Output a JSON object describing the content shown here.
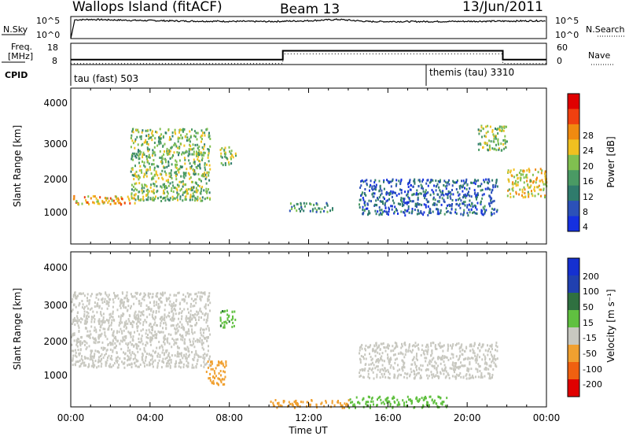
{
  "header": {
    "station": "Wallops Island (fitACF)",
    "beam": "Beam 13",
    "date": "13/Jun/2011"
  },
  "nsky_panel": {
    "left_label": "N.Sky",
    "right_label": "N.Search",
    "left_ticks": [
      "10^5",
      "10^0"
    ],
    "right_ticks": [
      "10^5",
      "10^0"
    ]
  },
  "freq_panel": {
    "left_label_line1": "Freq.",
    "left_label_line2": "[MHz]",
    "right_label": "Nave",
    "left_ticks": [
      "18",
      "8"
    ],
    "right_ticks": [
      "60",
      "0"
    ]
  },
  "cpid_panel": {
    "label": "CPID",
    "programs": [
      "tau (fast) 503",
      "themis (tau) 3310"
    ]
  },
  "power_panel": {
    "ylabel": "Slant Range [km]",
    "y_ticks": [
      "4000",
      "3000",
      "2000",
      "1000"
    ],
    "colorbar_label": "Power [dB]",
    "colorbar_ticks": [
      "28",
      "24",
      "20",
      "16",
      "12",
      "8",
      "4"
    ]
  },
  "velocity_panel": {
    "ylabel": "Slant Range [km]",
    "y_ticks": [
      "4000",
      "3000",
      "2000",
      "1000"
    ],
    "colorbar_label": "Velocity [m s⁻¹]",
    "colorbar_ticks": [
      "200",
      "100",
      "50",
      "15",
      "-15",
      "-50",
      "-100",
      "-200"
    ]
  },
  "x_axis": {
    "label": "Time UT",
    "ticks": [
      "00:00",
      "04:00",
      "08:00",
      "12:00",
      "16:00",
      "20:00",
      "00:00"
    ]
  },
  "colors": {
    "power_scale": [
      "#1530e0",
      "#2c51b8",
      "#2f7b6c",
      "#4a9a64",
      "#80c050",
      "#f0c020",
      "#f08a10",
      "#f04010",
      "#e00000"
    ],
    "velocity_scale": [
      "#e00000",
      "#f06010",
      "#f0a030",
      "#c8c8c0",
      "#60c040",
      "#2f7040",
      "#2040b0",
      "#1530d0"
    ]
  },
  "chart_data": [
    {
      "type": "line",
      "title": "N.Sky / N.Search",
      "x_range_hours": [
        0,
        24
      ],
      "description_series": [
        {
          "name": "N.Sky",
          "x": [
            0,
            0.2,
            1,
            3,
            6,
            10,
            12,
            13.5,
            15,
            18,
            22,
            24
          ],
          "y_log10": [
            0,
            4.4,
            4.5,
            4.3,
            4.1,
            4.0,
            4.2,
            4.5,
            4.0,
            4.0,
            4.1,
            4.2
          ]
        },
        {
          "name": "N.Search",
          "x": [
            0,
            24
          ],
          "y_log10": [
            0,
            0
          ]
        }
      ]
    },
    {
      "type": "line",
      "title": "Freq. / Nave",
      "series": [
        {
          "name": "Freq. [MHz]",
          "x": [
            0,
            10.7,
            10.7,
            21.8,
            21.8,
            24
          ],
          "y": [
            10.3,
            10.3,
            14.5,
            14.5,
            10.3,
            10.3
          ]
        },
        {
          "name": "Nave",
          "x": [
            0,
            10.7,
            10.7,
            21.8,
            21.8,
            24
          ],
          "y": [
            3,
            3,
            30,
            30,
            3,
            3
          ]
        }
      ],
      "ylim_left": [
        8,
        18
      ],
      "ylim_right": [
        0,
        60
      ]
    },
    {
      "type": "heatmap",
      "title": "Power [dB]",
      "ylabel": "Slant Range [km]",
      "xlabel": "Time UT",
      "xlim_hours": [
        0,
        24
      ],
      "ylim_km": [
        180,
        4500
      ],
      "zlim": [
        0,
        30
      ],
      "features": [
        {
          "t": [
            0,
            3.5
          ],
          "range_km": [
            1300,
            1550
          ],
          "power_db": 20
        },
        {
          "t": [
            3.0,
            7.0
          ],
          "range_km": [
            1400,
            3400
          ],
          "power_db": 14
        },
        {
          "t": [
            7.5,
            8.3
          ],
          "range_km": [
            2400,
            2900
          ],
          "power_db": 14
        },
        {
          "t": [
            11.0,
            13.2
          ],
          "range_km": [
            1100,
            1350
          ],
          "power_db": 10
        },
        {
          "t": [
            14.5,
            21.5
          ],
          "range_km": [
            1000,
            2000
          ],
          "power_db": 6
        },
        {
          "t": [
            20.5,
            22
          ],
          "range_km": [
            2800,
            3500
          ],
          "power_db": 14
        },
        {
          "t": [
            22,
            24
          ],
          "range_km": [
            1500,
            2300
          ],
          "power_db": 18
        }
      ]
    },
    {
      "type": "heatmap",
      "title": "Velocity [m s⁻¹]",
      "ylabel": "Slant Range [km]",
      "xlabel": "Time UT",
      "xlim_hours": [
        0,
        24
      ],
      "ylim_km": [
        180,
        4500
      ],
      "zlim": [
        -250,
        250
      ],
      "features": [
        {
          "t": [
            0,
            7.0
          ],
          "range_km": [
            1300,
            3400
          ],
          "velocity_ms": 0
        },
        {
          "t": [
            6.8,
            7.8
          ],
          "range_km": [
            800,
            1500
          ],
          "velocity_ms": -60
        },
        {
          "t": [
            7.5,
            8.3
          ],
          "range_km": [
            2400,
            2900
          ],
          "velocity_ms": 40
        },
        {
          "t": [
            14.5,
            21.5
          ],
          "range_km": [
            1000,
            2000
          ],
          "velocity_ms": 0
        },
        {
          "t": [
            10,
            14
          ],
          "range_km": [
            180,
            400
          ],
          "velocity_ms": -30
        },
        {
          "t": [
            14,
            19
          ],
          "range_km": [
            180,
            500
          ],
          "velocity_ms": 30
        }
      ]
    }
  ]
}
